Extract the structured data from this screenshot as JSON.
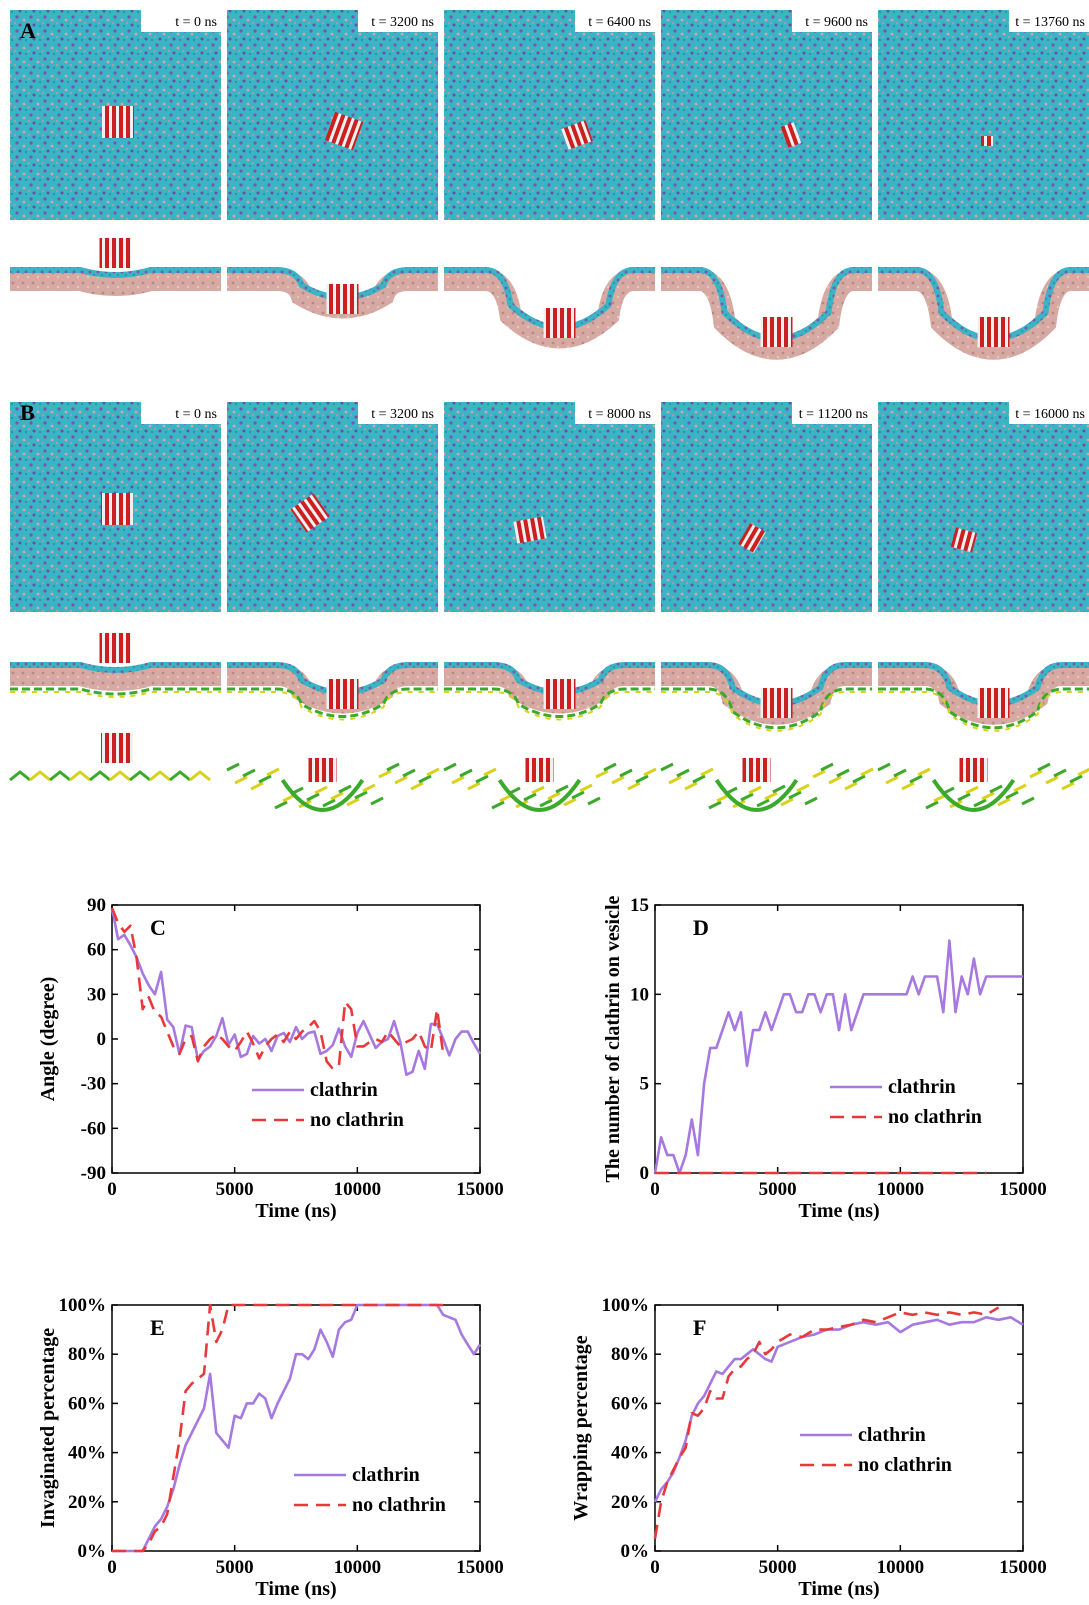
{
  "panels": {
    "A_top_times": [
      "t = 0 ns",
      "t = 3200 ns",
      "t = 6400 ns",
      "t = 9600 ns",
      "t = 13760 ns"
    ],
    "B_top_times": [
      "t = 0 ns",
      "t = 3200 ns",
      "t = 8000 ns",
      "t = 11200 ns",
      "t = 16000 ns"
    ],
    "letters": {
      "A": "A",
      "B": "B"
    }
  },
  "colors": {
    "lipid_head": "#39b6c8",
    "lipid_head_purple": "#7a5aa8",
    "lipid_tail": "#d7a9a3",
    "particle_red": "#cc1f1f",
    "particle_white": "#f2f2f2",
    "clathrin_green": "#3aaa2a",
    "clathrin_yellow": "#d8d21a",
    "line_clathrin": "#a678e0",
    "line_no_clathrin": "#e8393a"
  },
  "chart_data": [
    {
      "id": "C",
      "type": "line",
      "letter": "C",
      "xlabel": "Time (ns)",
      "ylabel": "Angle (degree)",
      "xlim": [
        0,
        15000
      ],
      "ylim": [
        -90,
        90
      ],
      "xticks": [
        "0",
        "5000",
        "10000",
        "15000"
      ],
      "yticks": [
        "90",
        "60",
        "30",
        "0",
        "-30",
        "-60",
        "-90"
      ],
      "legend_position": "bottom-right",
      "series": [
        {
          "name": "clathrin",
          "style": "solid",
          "x": [
            0,
            250,
            500,
            750,
            1000,
            1250,
            1500,
            1750,
            2000,
            2250,
            2500,
            2750,
            3000,
            3250,
            3500,
            3750,
            4000,
            4250,
            4500,
            4750,
            5000,
            5250,
            5500,
            5750,
            6000,
            6250,
            6500,
            6750,
            7000,
            7250,
            7500,
            7750,
            8000,
            8250,
            8500,
            8750,
            9000,
            9250,
            9500,
            9750,
            10000,
            10250,
            10500,
            10750,
            11000,
            11250,
            11500,
            11750,
            12000,
            12250,
            12500,
            12750,
            13000,
            13250,
            13500,
            13750,
            14000,
            14250,
            14500,
            14750,
            15000
          ],
          "y": [
            88,
            67,
            70,
            63,
            55,
            44,
            36,
            30,
            45,
            13,
            8,
            -10,
            9,
            8,
            -14,
            -8,
            -5,
            2,
            14,
            -4,
            3,
            -12,
            -10,
            2,
            -3,
            0,
            -8,
            2,
            4,
            -2,
            8,
            0,
            4,
            5,
            -10,
            -8,
            -4,
            7,
            -5,
            -12,
            4,
            12,
            3,
            -6,
            -2,
            0,
            12,
            -2,
            -24,
            -22,
            -8,
            -20,
            10,
            10,
            0,
            -11,
            0,
            5,
            5,
            -3,
            -10
          ]
        },
        {
          "name": "no clathrin",
          "style": "dashed",
          "x": [
            0,
            250,
            500,
            750,
            1000,
            1250,
            1500,
            1750,
            2000,
            2250,
            2500,
            2750,
            3000,
            3250,
            3500,
            3750,
            4000,
            4250,
            4500,
            4750,
            5000,
            5250,
            5500,
            5750,
            6000,
            6250,
            6500,
            6750,
            7000,
            7250,
            7500,
            7750,
            8000,
            8250,
            8500,
            8750,
            9000,
            9250,
            9500,
            9750,
            10000,
            10250,
            10500,
            10750,
            11000,
            11250,
            11500,
            11750,
            12000,
            12250,
            12500,
            12750,
            13000,
            13250,
            13500
          ],
          "y": [
            88,
            78,
            72,
            76,
            55,
            20,
            28,
            18,
            15,
            5,
            -5,
            -10,
            0,
            2,
            -15,
            -5,
            0,
            3,
            0,
            -5,
            -8,
            -2,
            5,
            -3,
            -13,
            -5,
            0,
            3,
            -2,
            5,
            0,
            5,
            8,
            12,
            5,
            -15,
            -20,
            -18,
            25,
            20,
            -5,
            -5,
            -2,
            0,
            -2,
            5,
            0,
            -5,
            -2,
            0,
            5,
            -5,
            -8,
            20,
            -10
          ]
        }
      ],
      "legend": [
        "clathrin",
        "no clathrin"
      ]
    },
    {
      "id": "D",
      "type": "line",
      "letter": "D",
      "xlabel": "Time (ns)",
      "ylabel": "The number of clathrin on vesicle",
      "xlim": [
        0,
        15000
      ],
      "ylim": [
        0,
        15
      ],
      "xticks": [
        "0",
        "5000",
        "10000",
        "15000"
      ],
      "yticks": [
        "15",
        "10",
        "5",
        "0"
      ],
      "legend_position": "bottom-right",
      "series": [
        {
          "name": "clathrin",
          "style": "solid",
          "x": [
            0,
            250,
            500,
            750,
            1000,
            1250,
            1500,
            1750,
            2000,
            2250,
            2500,
            2750,
            3000,
            3250,
            3500,
            3750,
            4000,
            4250,
            4500,
            4750,
            5000,
            5250,
            5500,
            5750,
            6000,
            6250,
            6500,
            6750,
            7000,
            7250,
            7500,
            7750,
            8000,
            8250,
            8500,
            8750,
            9000,
            9250,
            9500,
            9750,
            10000,
            10250,
            10500,
            10750,
            11000,
            11250,
            11500,
            11750,
            12000,
            12250,
            12500,
            12750,
            13000,
            13250,
            13500,
            13750,
            14000,
            14250,
            14500,
            14750,
            15000
          ],
          "y": [
            0,
            2,
            1,
            1,
            0,
            1,
            3,
            1,
            5,
            7,
            7,
            8,
            9,
            8,
            9,
            6,
            8,
            8,
            9,
            8,
            9,
            10,
            10,
            9,
            9,
            10,
            10,
            9,
            10,
            10,
            8,
            10,
            8,
            9,
            10,
            10,
            10,
            10,
            10,
            10,
            10,
            10,
            11,
            10,
            11,
            11,
            11,
            9,
            13,
            9,
            11,
            10,
            12,
            10,
            11,
            11,
            11,
            11,
            11,
            11,
            11
          ]
        },
        {
          "name": "no clathrin",
          "style": "dashed",
          "x": [
            0,
            13500
          ],
          "y": [
            0,
            0
          ]
        }
      ],
      "legend": [
        "clathrin",
        "no clathrin"
      ]
    },
    {
      "id": "E",
      "type": "line",
      "letter": "E",
      "xlabel": "Time (ns)",
      "ylabel": "Invaginated percentage",
      "xlim": [
        0,
        15000
      ],
      "ylim": [
        0,
        100
      ],
      "xticks": [
        "0",
        "5000",
        "10000",
        "15000"
      ],
      "yticks": [
        "100%",
        "80%",
        "60%",
        "40%",
        "20%",
        "0%"
      ],
      "legend_position": "bottom-right",
      "series": [
        {
          "name": "clathrin",
          "style": "solid",
          "x": [
            0,
            500,
            1000,
            1250,
            1500,
            1750,
            2000,
            2250,
            2500,
            2750,
            3000,
            3250,
            3500,
            3750,
            4000,
            4250,
            4500,
            4750,
            5000,
            5250,
            5500,
            5750,
            6000,
            6250,
            6500,
            6750,
            7000,
            7250,
            7500,
            7750,
            8000,
            8250,
            8500,
            8750,
            9000,
            9250,
            9500,
            9750,
            10000,
            10250,
            10500,
            10750,
            11000,
            11250,
            11500,
            11750,
            12000,
            12250,
            12500,
            12750,
            13000,
            13250,
            13500,
            13750,
            14000,
            14250,
            14500,
            14750,
            15000
          ],
          "y": [
            0,
            0,
            0,
            0,
            5,
            10,
            13,
            18,
            25,
            35,
            43,
            48,
            53,
            58,
            72,
            48,
            45,
            42,
            55,
            54,
            60,
            60,
            64,
            62,
            54,
            60,
            65,
            70,
            80,
            80,
            78,
            82,
            90,
            85,
            79,
            90,
            93,
            94,
            100,
            100,
            100,
            100,
            100,
            100,
            100,
            100,
            100,
            100,
            100,
            100,
            100,
            100,
            96,
            95,
            94,
            88,
            84,
            80,
            84
          ]
        },
        {
          "name": "no clathrin",
          "style": "dashed",
          "x": [
            0,
            500,
            1000,
            1250,
            1500,
            1750,
            2000,
            2250,
            2500,
            2750,
            3000,
            3250,
            3500,
            3750,
            4000,
            4250,
            4500,
            4750,
            5000,
            5500,
            6000,
            7000,
            8000,
            9000,
            10000,
            11000,
            12000,
            13000,
            13500
          ],
          "y": [
            0,
            0,
            0,
            0,
            3,
            8,
            10,
            15,
            30,
            45,
            65,
            68,
            70,
            72,
            100,
            85,
            90,
            100,
            100,
            100,
            100,
            100,
            100,
            100,
            100,
            100,
            100,
            100,
            100
          ]
        }
      ],
      "legend": [
        "clathrin",
        "no clathrin"
      ]
    },
    {
      "id": "F",
      "type": "line",
      "letter": "F",
      "xlabel": "Time (ns)",
      "ylabel": "Wrapping percentage",
      "xlim": [
        0,
        15000
      ],
      "ylim": [
        0,
        100
      ],
      "xticks": [
        "0",
        "5000",
        "10000",
        "15000"
      ],
      "yticks": [
        "100%",
        "80%",
        "60%",
        "40%",
        "20%",
        "0%"
      ],
      "legend_position": "center-right",
      "series": [
        {
          "name": "clathrin",
          "style": "solid",
          "x": [
            0,
            250,
            500,
            750,
            1000,
            1250,
            1500,
            1750,
            2000,
            2250,
            2500,
            2750,
            3000,
            3250,
            3500,
            3750,
            4000,
            4250,
            4500,
            4750,
            5000,
            5500,
            6000,
            6500,
            7000,
            7500,
            8000,
            8500,
            9000,
            9500,
            10000,
            10500,
            11000,
            11500,
            12000,
            12500,
            13000,
            13500,
            14000,
            14500,
            15000
          ],
          "y": [
            20,
            25,
            28,
            32,
            38,
            45,
            55,
            60,
            63,
            68,
            73,
            72,
            75,
            78,
            78,
            80,
            82,
            80,
            78,
            77,
            83,
            85,
            87,
            88,
            90,
            90,
            92,
            93,
            92,
            93,
            89,
            92,
            93,
            94,
            92,
            93,
            93,
            95,
            94,
            95,
            92
          ]
        },
        {
          "name": "no clathrin",
          "style": "dashed",
          "x": [
            0,
            250,
            500,
            750,
            1000,
            1250,
            1500,
            1750,
            2000,
            2250,
            2500,
            2750,
            3000,
            3250,
            3500,
            3750,
            4000,
            4250,
            4500,
            4750,
            5000,
            5500,
            6000,
            6500,
            7000,
            7500,
            8000,
            8500,
            9000,
            9500,
            10000,
            10500,
            11000,
            11500,
            12000,
            12500,
            13000,
            13500,
            14000
          ],
          "y": [
            5,
            20,
            28,
            33,
            38,
            42,
            56,
            55,
            58,
            65,
            62,
            62,
            71,
            74,
            75,
            78,
            80,
            85,
            80,
            82,
            85,
            88,
            87,
            90,
            90,
            91,
            92,
            94,
            93,
            95,
            97,
            96,
            97,
            96,
            97,
            96,
            97,
            96,
            99
          ]
        }
      ],
      "legend": [
        "clathrin",
        "no clathrin"
      ]
    }
  ]
}
